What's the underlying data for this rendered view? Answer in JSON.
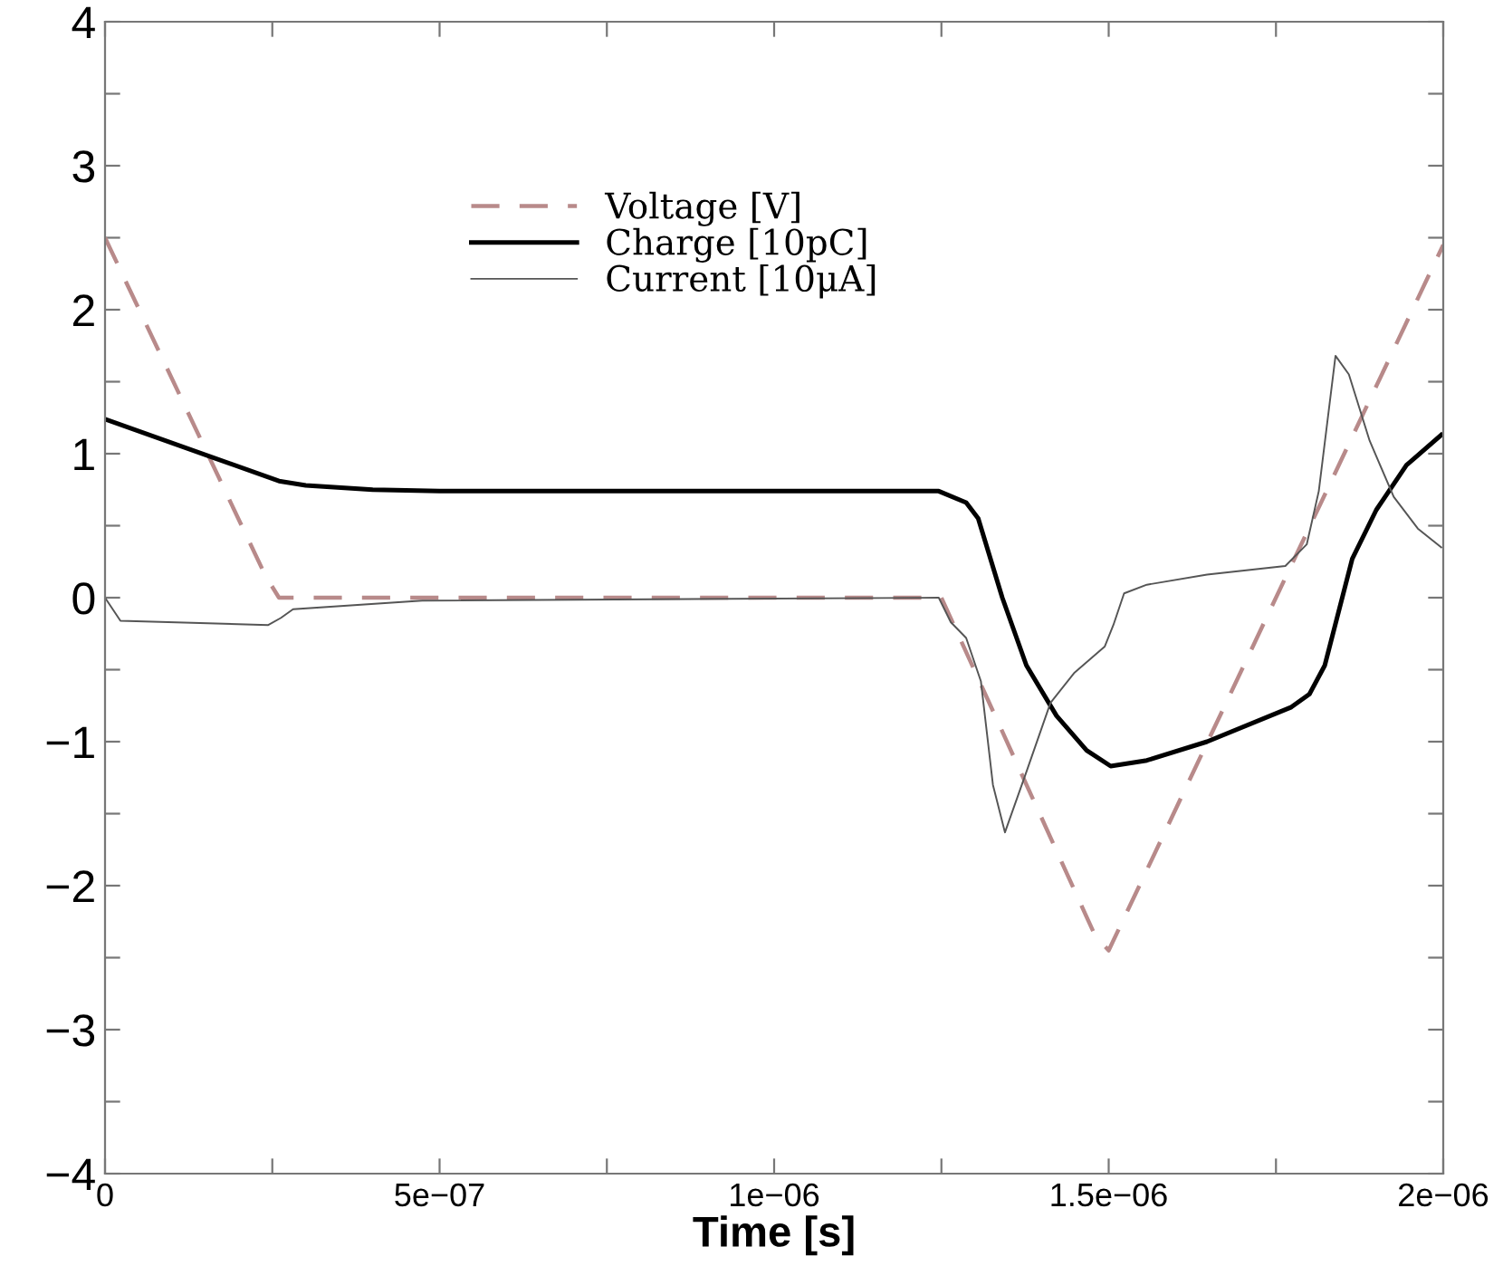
{
  "chart_data": {
    "type": "line",
    "xlabel": "Time [s]",
    "xlim": [
      0,
      2e-06
    ],
    "ylim": [
      -4,
      4
    ],
    "xticks": [
      {
        "value": 0,
        "label": "0"
      },
      {
        "value": 2.5e-07,
        "label": null
      },
      {
        "value": 5e-07,
        "label": "5e−07"
      },
      {
        "value": 7.5e-07,
        "label": null
      },
      {
        "value": 1e-06,
        "label": "1e−06"
      },
      {
        "value": 1.25e-06,
        "label": null
      },
      {
        "value": 1.5e-06,
        "label": "1.5e−06"
      },
      {
        "value": 1.75e-06,
        "label": null
      },
      {
        "value": 2e-06,
        "label": "2e−06"
      }
    ],
    "yticks": [
      -4,
      {
        "value": -3.5,
        "label": null
      },
      -3,
      {
        "value": -2.5,
        "label": null
      },
      -2,
      {
        "value": -1.5,
        "label": null
      },
      -1,
      {
        "value": -0.5,
        "label": null
      },
      0,
      {
        "value": 0.5,
        "label": null
      },
      1,
      {
        "value": 1.5,
        "label": null
      },
      2,
      {
        "value": 2.5,
        "label": null
      },
      3,
      {
        "value": 3.5,
        "label": null
      },
      4
    ],
    "grid": false,
    "legend": "top",
    "marker": "none",
    "series": [
      {
        "name": "Voltage [V]",
        "color": "#b88a8a",
        "line_style": "dashed",
        "x": [
          0,
          2.4e-07,
          2.6e-07,
          1.25e-06,
          1.48e-06,
          1.5e-06,
          2e-06
        ],
        "values": [
          2.5,
          0.15,
          0,
          0,
          -2.35,
          -2.45,
          2.45
        ]
      },
      {
        "name": "Charge [10pC]",
        "color": "#000000",
        "line_style": "solid",
        "x": [
          0,
          2.6e-07,
          3e-07,
          4e-07,
          5e-07,
          1.246e-06,
          1.287e-06,
          1.305e-06,
          1.341e-06,
          1.377e-06,
          1.422e-06,
          1.467e-06,
          1.503e-06,
          1.557e-06,
          1.647e-06,
          1.773e-06,
          1.8e-06,
          1.823e-06,
          1.864e-06,
          1.9e-06,
          1.945e-06,
          1.997e-06
        ],
        "values": [
          1.24,
          0.81,
          0.78,
          0.75,
          0.74,
          0.74,
          0.66,
          0.55,
          0.0,
          -0.47,
          -0.82,
          -1.06,
          -1.17,
          -1.13,
          -1.0,
          -0.76,
          -0.67,
          -0.47,
          0.27,
          0.61,
          0.92,
          1.13
        ]
      },
      {
        "name": "Current [10μA]",
        "color": "#555555",
        "line_style": "solid",
        "x": [
          0,
          2.3e-08,
          2.44e-07,
          2.63e-07,
          2.81e-07,
          4.74e-07,
          1.246e-06,
          1.264e-06,
          1.287e-06,
          1.309e-06,
          1.327e-06,
          1.345e-06,
          1.377e-06,
          1.413e-06,
          1.449e-06,
          1.494e-06,
          1.507e-06,
          1.523e-06,
          1.557e-06,
          1.647e-06,
          1.764e-06,
          1.796e-06,
          1.814e-06,
          1.839e-06,
          1.859e-06,
          1.89e-06,
          1.926e-06,
          1.962e-06,
          1.997e-06
        ],
        "values": [
          0,
          -0.16,
          -0.19,
          -0.14,
          -0.08,
          -0.02,
          0,
          -0.17,
          -0.28,
          -0.58,
          -1.3,
          -1.63,
          -1.21,
          -0.73,
          -0.52,
          -0.34,
          -0.19,
          0.03,
          0.09,
          0.16,
          0.22,
          0.37,
          0.74,
          1.68,
          1.55,
          1.09,
          0.7,
          0.48,
          0.35
        ]
      }
    ]
  }
}
